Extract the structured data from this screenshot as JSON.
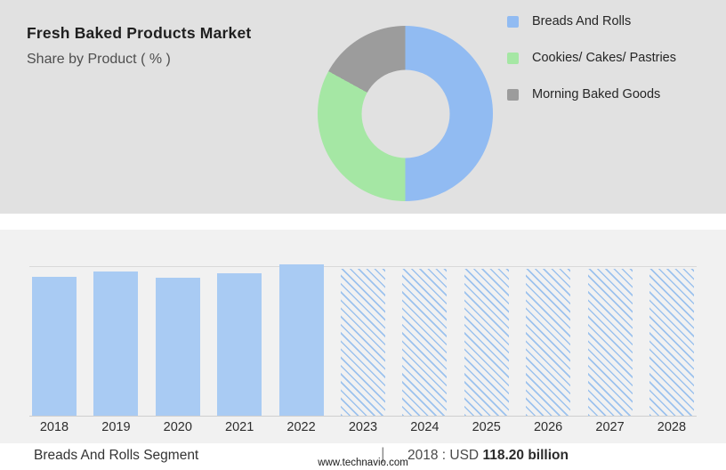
{
  "header": {
    "title": "Fresh Baked Products Market",
    "subtitle": "Share by Product ( % )"
  },
  "footer": {
    "segment_label": "Breads And Rolls Segment",
    "separator": "|",
    "value_prefix": "2018 : USD",
    "value_bold": "118.20 billion",
    "website": "www.technavio.com"
  },
  "colors": {
    "top_panel_bg": "#e1e1e1",
    "bottom_panel_bg": "#f1f1f1",
    "pie_blue": "#91bbf2",
    "pie_green": "#a5e7a4",
    "pie_gray": "#9c9c9c",
    "bar_blue": "#a9cbf3"
  },
  "chart_data": [
    {
      "type": "pie",
      "donut": true,
      "title": "Share by Product ( % )",
      "labels": [
        "Breads And Rolls",
        "Cookies/ Cakes/ Pastries",
        "Morning Baked Goods"
      ],
      "values": [
        50,
        33,
        17
      ],
      "unit": "%",
      "colors": [
        "#91bbf2",
        "#a5e7a4",
        "#9c9c9c"
      ],
      "legend_position": "right",
      "start_angle_deg": 0,
      "direction": "clockwise"
    },
    {
      "type": "bar",
      "title": "Breads And Rolls Segment",
      "categories": [
        "2018",
        "2019",
        "2020",
        "2021",
        "2022",
        "2023",
        "2024",
        "2025",
        "2026",
        "2027",
        "2028"
      ],
      "values": [
        92,
        95,
        91,
        94,
        100,
        97,
        97,
        97,
        97,
        97,
        97
      ],
      "values_note": "relative bar heights, max bar (2022) = 100; no y-axis shown in chart",
      "actual_years": [
        "2018",
        "2019",
        "2020",
        "2021",
        "2022"
      ],
      "forecast_years": [
        "2023",
        "2024",
        "2025",
        "2026",
        "2027",
        "2028"
      ],
      "forecast_style": "diagonal-hatch",
      "bar_color": "#a9cbf3",
      "annotation": "2018 : USD 118.20 billion",
      "yaxis_visible": false,
      "grid": "single top line"
    }
  ]
}
